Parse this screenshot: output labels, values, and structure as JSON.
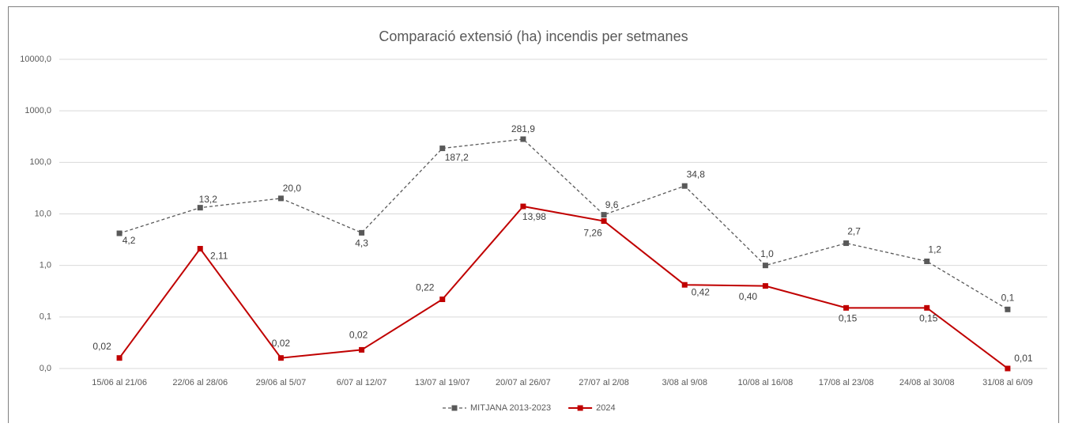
{
  "chart_data": {
    "type": "line",
    "title": "Comparació extensió (ha) incendis per setmanes",
    "categories": [
      "15/06 al 21/06",
      "22/06 al 28/06",
      "29/06 al 5/07",
      "6/07 al 12/07",
      "13/07 al 19/07",
      "20/07 al 26/07",
      "27/07 al 2/08",
      "3/08 al 9/08",
      "10/08 al 16/08",
      "17/08 al 23/08",
      "24/08 al 30/08",
      "31/08 al 6/09"
    ],
    "series": [
      {
        "name": "MITJANA 2013-2023",
        "color": "#595959",
        "dashed": true,
        "values": [
          4.2,
          13.2,
          20.0,
          4.3,
          187.2,
          281.9,
          9.6,
          34.8,
          1.0,
          2.7,
          1.2,
          0.14
        ],
        "value_labels": [
          "4,2",
          "13,2",
          "20,0",
          "4,3",
          "187,2",
          "281,9",
          "9,6",
          "34,8",
          "1,0",
          "2,7",
          "1,2",
          "0,1"
        ]
      },
      {
        "name": "2024",
        "color": "#c00000",
        "dashed": false,
        "values": [
          0.016,
          2.11,
          0.016,
          0.023,
          0.22,
          13.98,
          7.26,
          0.42,
          0.4,
          0.15,
          0.15,
          0.01
        ],
        "value_labels": [
          "0,02",
          "2,11",
          "0,02",
          "0,02",
          "0,22",
          "13,98",
          "7,26",
          "0,42",
          "0,40",
          "0,15",
          "0,15",
          "0,01"
        ]
      }
    ],
    "log_scale": true,
    "ylim": [
      0.01,
      10000
    ],
    "yticks": [
      {
        "value": 0.01,
        "label": "0,0"
      },
      {
        "value": 0.1,
        "label": "0,1"
      },
      {
        "value": 1,
        "label": "1,0"
      },
      {
        "value": 10,
        "label": "10,0"
      },
      {
        "value": 100,
        "label": "100,0"
      },
      {
        "value": 1000,
        "label": "1000,0"
      },
      {
        "value": 10000,
        "label": "10000,0"
      }
    ],
    "grid": true,
    "legend": "bottom"
  }
}
